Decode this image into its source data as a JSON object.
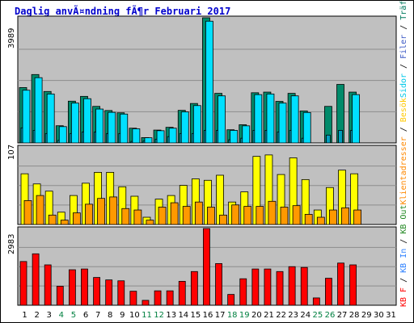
{
  "title": "Daglig anvÃ¤ndning fÃ¶r Februari 2017",
  "legend": {
    "top_items": [
      {
        "label": "Träffar",
        "color": "#007a5e"
      },
      {
        "label": "Filer",
        "color": "#3d5ac5"
      },
      {
        "label": "Sidor",
        "color": "#00c8e8"
      }
    ],
    "middle_items": [
      {
        "label": "Besök",
        "color": "#ffc800"
      },
      {
        "label": "Klientadresser",
        "color": "#ff8800"
      }
    ],
    "bottom_items": [
      {
        "label": "KB Out",
        "color": "#228822"
      },
      {
        "label": "KB In",
        "color": "#2b7fff"
      },
      {
        "label": "KB F",
        "color": "#ff0000"
      }
    ],
    "separator": " / "
  },
  "colors": {
    "plot_bg": "#c0c0c0",
    "grid": "#8c8c8c",
    "hits": "#008a6a",
    "files": "#00a0c0",
    "pages": "#00e0ff",
    "visits": "#ffff00",
    "sites": "#ff9900",
    "kbf": "#ff0000",
    "weekday_label": "#000000",
    "weekend_label": "#008040"
  },
  "chart_data": {
    "type": "bar",
    "categories": [
      "1",
      "2",
      "3",
      "4",
      "5",
      "6",
      "7",
      "8",
      "9",
      "10",
      "11",
      "12",
      "13",
      "14",
      "15",
      "16",
      "17",
      "18",
      "19",
      "20",
      "21",
      "22",
      "23",
      "24",
      "25",
      "26",
      "27",
      "28",
      "29",
      "30",
      "31"
    ],
    "weekend_days": [
      4,
      5,
      11,
      12,
      18,
      19,
      25,
      26
    ],
    "panels": [
      {
        "id": "hits-files-pages",
        "ymax_label": "3989",
        "ymax": 3989,
        "series": [
          {
            "name": "Träffar",
            "values": [
              1765,
              2180,
              1640,
              548,
              1331,
              1484,
              1165,
              1033,
              960,
              470,
              170,
              410,
              498,
              1039,
              1257,
              3989,
              1580,
              420,
              580,
              1600,
              1620,
              1325,
              1580,
              1020,
              0,
              1165,
              1865,
              1620,
              0,
              0,
              0
            ]
          },
          {
            "name": "Filer",
            "values": [
              480,
              400,
              300,
              80,
              300,
              350,
              350,
              300,
              300,
              50,
              60,
              120,
              200,
              300,
              300,
              400,
              400,
              100,
              150,
              400,
              400,
              350,
              400,
              150,
              0,
              250,
              400,
              400,
              0,
              0,
              0
            ]
          },
          {
            "name": "Sidor",
            "values": [
              1680,
              2080,
              1560,
              520,
              1270,
              1410,
              1080,
              975,
              920,
              450,
              165,
              390,
              470,
              990,
              1190,
              3880,
              1500,
              400,
              545,
              1540,
              1560,
              1270,
              1500,
              970,
              0,
              0,
              0,
              1540,
              0,
              0,
              0
            ]
          }
        ]
      },
      {
        "id": "visits-sites",
        "ymax_label": "107",
        "ymax": 107,
        "series": [
          {
            "name": "Besök",
            "values": [
              70,
              56,
              46,
              17,
              40,
              57,
              72,
              72,
              52,
              39,
              10,
              35,
              40,
              54,
              63,
              61,
              68,
              31,
              45,
              94,
              96,
              69,
              92,
              62,
              20,
              51,
              75,
              70,
              0,
              0,
              0
            ]
          },
          {
            "name": "Klientadresser",
            "values": [
              33,
              40,
              13,
              6,
              16,
              28,
              36,
              38,
              22,
              20,
              6,
              24,
              30,
              25,
              31,
              24,
              13,
              27,
              25,
              25,
              32,
              24,
              26,
              14,
              10,
              20,
              23,
              20,
              0,
              0,
              0
            ]
          }
        ]
      },
      {
        "id": "kbf",
        "ymax_label": "2983",
        "ymax": 2983,
        "series": [
          {
            "name": "KB F",
            "values": [
              1700,
              2000,
              1570,
              740,
              1380,
              1410,
              1080,
              985,
              950,
              545,
              190,
              560,
              560,
              930,
              1310,
              2983,
              1620,
              420,
              1030,
              1410,
              1410,
              1310,
              1500,
              1470,
              285,
              1050,
              1640,
              1570,
              0,
              0,
              0
            ]
          }
        ]
      }
    ]
  }
}
